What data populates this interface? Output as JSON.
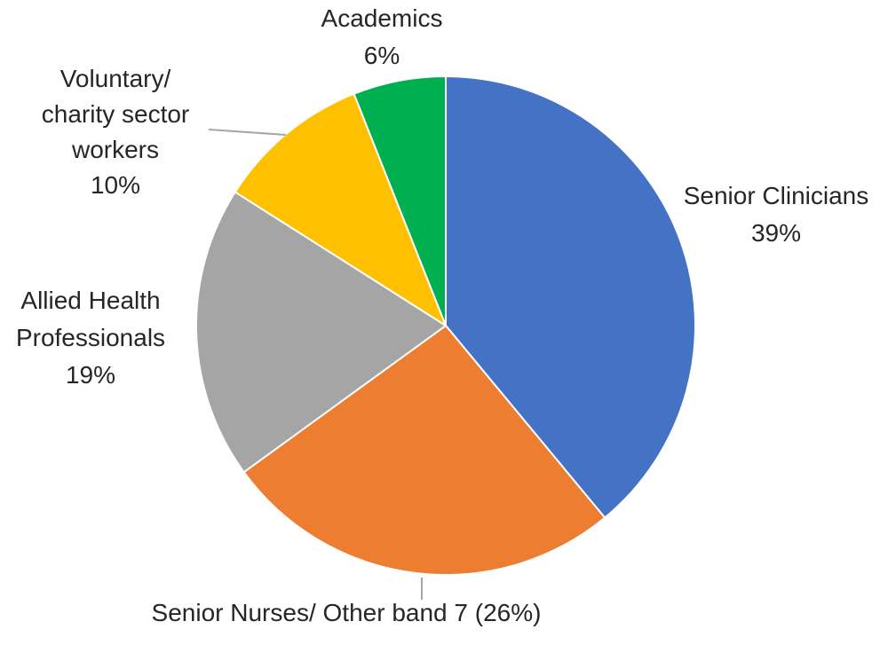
{
  "chart_data": {
    "type": "pie",
    "start_angle_deg": 0,
    "direction": "clockwise",
    "slices": [
      {
        "name": "Senior Clinicians",
        "value": 39,
        "color": "#4472C4",
        "label_lines": [
          "Senior Clinicians",
          "39%"
        ]
      },
      {
        "name": "Senior Nurses/ Other band 7",
        "value": 26,
        "color": "#ED7D31",
        "label_lines": [
          "Senior Nurses/ Other band 7 (26%)"
        ]
      },
      {
        "name": "Allied Health Professionals",
        "value": 19,
        "color": "#A5A5A5",
        "label_lines": [
          "Allied Health",
          "Professionals",
          "19%"
        ]
      },
      {
        "name": "Voluntary/ charity sector workers",
        "value": 10,
        "color": "#FFC000",
        "label_lines": [
          "Voluntary/",
          "charity sector",
          "workers",
          "10%"
        ]
      },
      {
        "name": "Academics",
        "value": 6,
        "color": "#00B050",
        "label_lines": [
          "Academics",
          "6%"
        ]
      }
    ]
  }
}
